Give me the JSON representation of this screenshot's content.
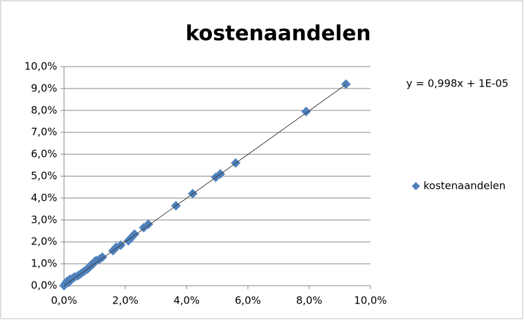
{
  "chart_data": {
    "type": "scatter",
    "title": "kostenaandelen",
    "series": [
      {
        "name": "kostenaandelen",
        "color": "#4f81bd",
        "x": [
          0.0,
          0.05,
          0.1,
          0.15,
          0.2,
          0.3,
          0.35,
          0.45,
          0.55,
          0.65,
          0.75,
          0.8,
          0.85,
          0.95,
          1.0,
          1.05,
          1.15,
          1.25,
          1.6,
          1.7,
          1.85,
          2.1,
          2.2,
          2.3,
          2.6,
          2.75,
          3.65,
          4.2,
          4.95,
          5.1,
          5.6,
          7.9,
          9.2
        ],
        "values": [
          0.0,
          0.1,
          0.2,
          0.15,
          0.3,
          0.35,
          0.4,
          0.45,
          0.55,
          0.65,
          0.75,
          0.8,
          0.9,
          1.0,
          1.1,
          1.15,
          1.2,
          1.3,
          1.6,
          1.75,
          1.85,
          2.05,
          2.2,
          2.35,
          2.65,
          2.8,
          3.65,
          4.2,
          4.95,
          5.1,
          5.6,
          7.95,
          9.2
        ]
      }
    ],
    "trendline": {
      "equation": "y = 0,998x + 1E-05",
      "slope": 0.998,
      "intercept": 0.001,
      "color": "#404040"
    },
    "xlim": [
      0,
      10
    ],
    "ylim": [
      0,
      10
    ],
    "xticks": [
      {
        "value": 0,
        "label": "0,0%"
      },
      {
        "value": 2,
        "label": "2,0%"
      },
      {
        "value": 4,
        "label": "4,0%"
      },
      {
        "value": 6,
        "label": "6,0%"
      },
      {
        "value": 8,
        "label": "8,0%"
      },
      {
        "value": 10,
        "label": "10,0%"
      }
    ],
    "yticks": [
      {
        "value": 0,
        "label": "0,0%"
      },
      {
        "value": 1,
        "label": "1,0%"
      },
      {
        "value": 2,
        "label": "2,0%"
      },
      {
        "value": 3,
        "label": "3,0%"
      },
      {
        "value": 4,
        "label": "4,0%"
      },
      {
        "value": 5,
        "label": "5,0%"
      },
      {
        "value": 6,
        "label": "6,0%"
      },
      {
        "value": 7,
        "label": "7,0%"
      },
      {
        "value": 8,
        "label": "8,0%"
      },
      {
        "value": 9,
        "label": "9,0%"
      },
      {
        "value": 10,
        "label": "10,0%"
      }
    ],
    "grid": true,
    "legend": "right"
  }
}
